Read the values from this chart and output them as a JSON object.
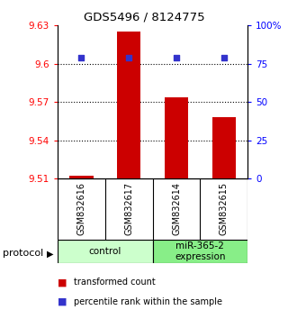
{
  "title": "GDS5496 / 8124775",
  "samples": [
    "GSM832616",
    "GSM832617",
    "GSM832614",
    "GSM832615"
  ],
  "transformed_counts": [
    9.512,
    9.625,
    9.574,
    9.558
  ],
  "percentile_ranks": [
    79,
    79,
    79,
    79
  ],
  "ylim_left": [
    9.51,
    9.63
  ],
  "ylim_right": [
    0,
    100
  ],
  "yticks_left": [
    9.51,
    9.54,
    9.57,
    9.6,
    9.63
  ],
  "yticks_right": [
    0,
    25,
    50,
    75,
    100
  ],
  "ytick_labels_right": [
    "0",
    "25",
    "50",
    "75",
    "100%"
  ],
  "bar_color": "#cc0000",
  "dot_color": "#3333cc",
  "groups": [
    {
      "label": "control",
      "sample_indices": [
        0,
        1
      ],
      "color": "#ccffcc"
    },
    {
      "label": "miR-365-2\nexpression",
      "sample_indices": [
        2,
        3
      ],
      "color": "#88ee88"
    }
  ],
  "protocol_label": "protocol",
  "legend_bar_label": "transformed count",
  "legend_dot_label": "percentile rank within the sample",
  "bar_width": 0.5,
  "background_color": "#ffffff",
  "sample_box_color": "#bbbbbb",
  "grid_lines_at": [
    9.54,
    9.57,
    9.6
  ]
}
